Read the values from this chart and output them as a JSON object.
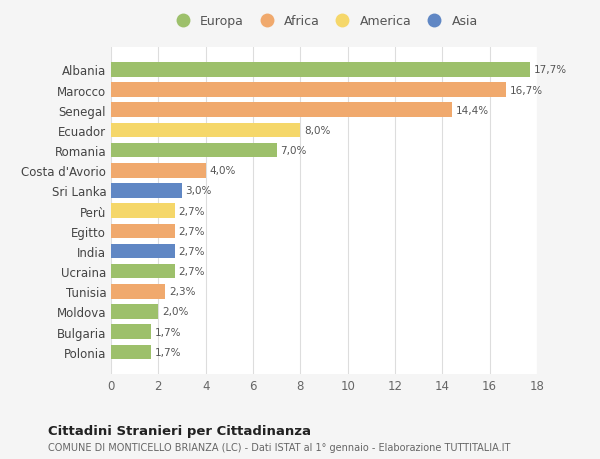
{
  "countries": [
    "Albania",
    "Marocco",
    "Senegal",
    "Ecuador",
    "Romania",
    "Costa d'Avorio",
    "Sri Lanka",
    "Perù",
    "Egitto",
    "India",
    "Ucraina",
    "Tunisia",
    "Moldova",
    "Bulgaria",
    "Polonia"
  ],
  "values": [
    17.7,
    16.7,
    14.4,
    8.0,
    7.0,
    4.0,
    3.0,
    2.7,
    2.7,
    2.7,
    2.7,
    2.3,
    2.0,
    1.7,
    1.7
  ],
  "labels": [
    "17,7%",
    "16,7%",
    "14,4%",
    "8,0%",
    "7,0%",
    "4,0%",
    "3,0%",
    "2,7%",
    "2,7%",
    "2,7%",
    "2,7%",
    "2,3%",
    "2,0%",
    "1,7%",
    "1,7%"
  ],
  "continent": [
    "Europa",
    "Africa",
    "Africa",
    "America",
    "Europa",
    "Africa",
    "Asia",
    "America",
    "Africa",
    "Asia",
    "Europa",
    "Africa",
    "Europa",
    "Europa",
    "Europa"
  ],
  "colors": {
    "Europa": "#9dc06b",
    "Africa": "#f0a96d",
    "America": "#f5d76a",
    "Asia": "#6087c4"
  },
  "legend_order": [
    "Europa",
    "Africa",
    "America",
    "Asia"
  ],
  "title": "Cittadini Stranieri per Cittadinanza",
  "subtitle": "COMUNE DI MONTICELLO BRIANZA (LC) - Dati ISTAT al 1° gennaio - Elaborazione TUTTITALIA.IT",
  "xlim": [
    0,
    18
  ],
  "xticks": [
    0,
    2,
    4,
    6,
    8,
    10,
    12,
    14,
    16,
    18
  ],
  "bg_color": "#f5f5f5",
  "plot_bg_color": "#ffffff",
  "grid_color": "#dddddd"
}
